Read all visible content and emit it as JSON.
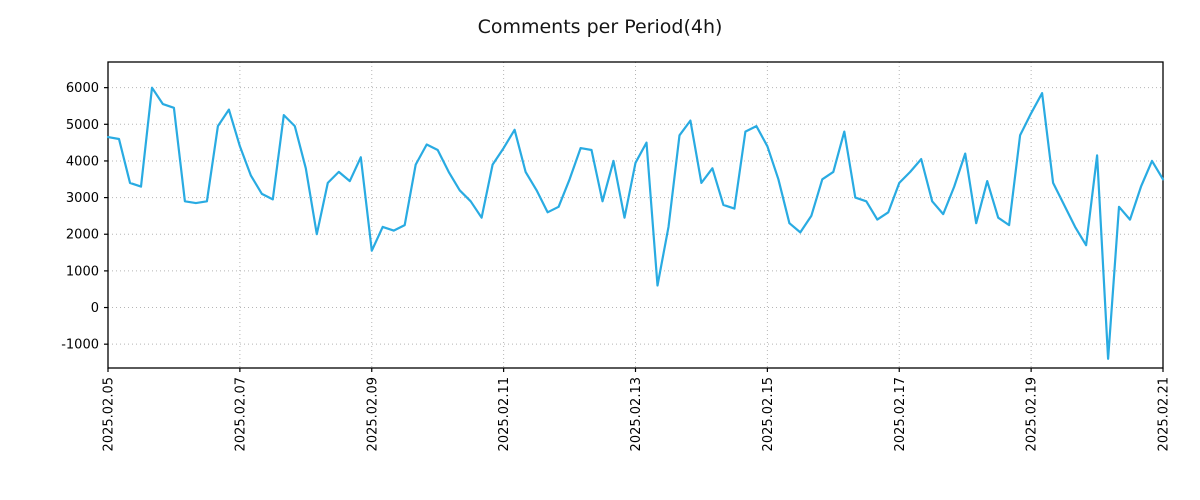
{
  "title": "Comments per Period(4h)",
  "chart_data": {
    "type": "line",
    "title": "Comments per Period(4h)",
    "series_name": "comments",
    "x_start": "2025.02.05 00:00",
    "interval_hours": 4,
    "x_tick_labels": [
      "2025.02.05",
      "2025.02.07",
      "2025.02.09",
      "2025.02.11",
      "2025.02.13",
      "2025.02.15",
      "2025.02.17",
      "2025.02.19",
      "2025.02.21"
    ],
    "x_tick_every": 12,
    "y_ticks": [
      -1000,
      0,
      1000,
      2000,
      3000,
      4000,
      5000,
      6000
    ],
    "ylim": [
      -1650,
      6700
    ],
    "grid": "dotted",
    "legend_position": "none",
    "line_color": "#29abe2",
    "line_width": 2.2,
    "values": [
      4650,
      4600,
      3400,
      3300,
      6000,
      5550,
      5450,
      2900,
      2850,
      2900,
      4950,
      5400,
      4400,
      3600,
      3100,
      2950,
      5250,
      4950,
      3800,
      2000,
      3400,
      3700,
      3450,
      4100,
      1550,
      2200,
      2100,
      2250,
      3900,
      4450,
      4300,
      3700,
      3200,
      2900,
      2450,
      3900,
      4350,
      4850,
      3700,
      3200,
      2600,
      2750,
      3500,
      4350,
      4300,
      2900,
      4000,
      2450,
      3950,
      4500,
      600,
      2200,
      4700,
      5100,
      3400,
      3800,
      2800,
      2700,
      4800,
      4950,
      4400,
      3500,
      2300,
      2050,
      2500,
      3500,
      3700,
      4800,
      3000,
      2900,
      2400,
      2600,
      3400,
      3700,
      4050,
      2900,
      2550,
      3300,
      4200,
      2300,
      3450,
      2450,
      2250,
      4700,
      5300,
      5850,
      3400,
      2800,
      2200,
      1700,
      4150,
      -1400,
      2750,
      2400,
      3300,
      4000,
      3500
    ]
  }
}
